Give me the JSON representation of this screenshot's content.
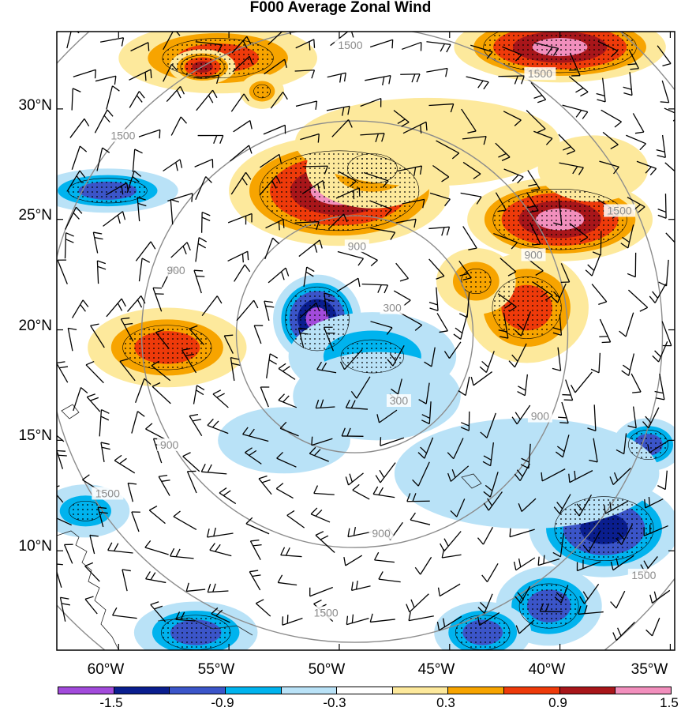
{
  "title": "F000 Average Zonal Wind",
  "colors": {
    "c1": "#a24bdb",
    "c2": "#0a1e8f",
    "c3": "#3b55c9",
    "c4": "#00b3ee",
    "c5": "#b9e2f7",
    "c6": "#ffffff",
    "c7": "#fde99c",
    "c8": "#f7a400",
    "c9": "#ee3a0a",
    "c10": "#a8161a",
    "c11": "#f28fbd"
  },
  "chart_data": {
    "type": "heatmap",
    "title": "F000 Average Zonal Wind",
    "lat_ticks": [
      "10°N",
      "15°N",
      "20°N",
      "25°N",
      "30°N"
    ],
    "lon_ticks": [
      "60°W",
      "55°W",
      "50°W",
      "45°W",
      "40°W",
      "35°W"
    ],
    "lat_range": [
      5.5,
      33.5
    ],
    "lon_range": [
      -62.8,
      -34.8
    ],
    "colorbar_labels": [
      "-1.5",
      "-0.9",
      "-0.3",
      "0.3",
      "0.9",
      "1.5"
    ],
    "ring_labels": [
      {
        "text": "300",
        "lon": -47.6,
        "lat": 21.0
      },
      {
        "text": "300",
        "lon": -47.3,
        "lat": 16.8
      },
      {
        "text": "900",
        "lon": -49.2,
        "lat": 23.8
      },
      {
        "text": "900",
        "lon": -57.4,
        "lat": 22.7
      },
      {
        "text": "900",
        "lon": -41.2,
        "lat": 23.4
      },
      {
        "text": "900",
        "lon": -40.9,
        "lat": 16.1
      },
      {
        "text": "900",
        "lon": -57.7,
        "lat": 14.8
      },
      {
        "text": "900",
        "lon": -48.1,
        "lat": 10.8
      },
      {
        "text": "1500",
        "lon": -49.5,
        "lat": 32.9
      },
      {
        "text": "1500",
        "lon": -59.8,
        "lat": 28.8
      },
      {
        "text": "1500",
        "lon": -40.9,
        "lat": 31.6
      },
      {
        "text": "1500",
        "lon": -37.3,
        "lat": 25.4
      },
      {
        "text": "1500",
        "lon": -60.5,
        "lat": 12.6
      },
      {
        "text": "1500",
        "lon": -50.6,
        "lat": 7.2
      },
      {
        "text": "1500",
        "lon": -36.2,
        "lat": 8.9
      }
    ],
    "zonal_wind_anomalies": [
      {
        "lon": -50.0,
        "lat": 26.3,
        "value": 1.6,
        "rx": 5.0,
        "ry": 2.5
      },
      {
        "lon": -48.5,
        "lat": 27.3,
        "value": 0.8,
        "rx": 3.0,
        "ry": 1.8
      },
      {
        "lon": -40.0,
        "lat": 25.0,
        "value": 1.6,
        "rx": 4.2,
        "ry": 1.9
      },
      {
        "lon": -38.5,
        "lat": 27.3,
        "value": 0.6,
        "rx": 2.5,
        "ry": 1.5
      },
      {
        "lon": -41.5,
        "lat": 21.0,
        "value": 1.0,
        "rx": 2.8,
        "ry": 2.5
      },
      {
        "lon": -43.8,
        "lat": 22.2,
        "value": 0.8,
        "rx": 1.8,
        "ry": 1.5
      },
      {
        "lon": -57.8,
        "lat": 19.2,
        "value": 1.2,
        "rx": 3.6,
        "ry": 1.8
      },
      {
        "lon": -40.0,
        "lat": 32.8,
        "value": 1.8,
        "rx": 4.8,
        "ry": 1.6
      },
      {
        "lon": -55.5,
        "lat": 32.3,
        "value": 1.0,
        "rx": 4.5,
        "ry": 1.6
      },
      {
        "lon": -56.2,
        "lat": 31.9,
        "value": 1.3,
        "rx": 1.5,
        "ry": 0.8
      },
      {
        "lon": -53.5,
        "lat": 30.8,
        "value": 0.8,
        "rx": 1.0,
        "ry": 0.8
      },
      {
        "lon": -46.0,
        "lat": 28.5,
        "value": 0.4,
        "rx": 6.0,
        "ry": 2.0
      },
      {
        "lon": -51.0,
        "lat": 20.5,
        "value": -1.6,
        "rx": 2.0,
        "ry": 2.0
      },
      {
        "lon": -48.5,
        "lat": 18.8,
        "value": -0.9,
        "rx": 3.8,
        "ry": 2.0
      },
      {
        "lon": -48.3,
        "lat": 17.0,
        "value": -0.4,
        "rx": 3.8,
        "ry": 2.0
      },
      {
        "lon": -38.0,
        "lat": 11.0,
        "value": -1.3,
        "rx": 3.4,
        "ry": 2.2
      },
      {
        "lon": -40.5,
        "lat": 7.5,
        "value": -1.1,
        "rx": 2.4,
        "ry": 1.8
      },
      {
        "lon": -43.5,
        "lat": 6.3,
        "value": -1.0,
        "rx": 2.2,
        "ry": 1.4
      },
      {
        "lon": -56.5,
        "lat": 6.3,
        "value": -1.0,
        "rx": 2.8,
        "ry": 1.4
      },
      {
        "lon": -60.5,
        "lat": 26.3,
        "value": -1.0,
        "rx": 3.2,
        "ry": 1.0
      },
      {
        "lon": -61.5,
        "lat": 11.8,
        "value": -0.9,
        "rx": 2.0,
        "ry": 1.2
      },
      {
        "lon": -36.0,
        "lat": 14.8,
        "value": -1.0,
        "rx": 1.6,
        "ry": 1.2
      },
      {
        "lon": -41.5,
        "lat": 13.5,
        "value": -0.5,
        "rx": 6.0,
        "ry": 2.5
      },
      {
        "lon": -52.5,
        "lat": 15.0,
        "value": -0.2,
        "rx": 3.0,
        "ry": 1.5
      }
    ]
  }
}
